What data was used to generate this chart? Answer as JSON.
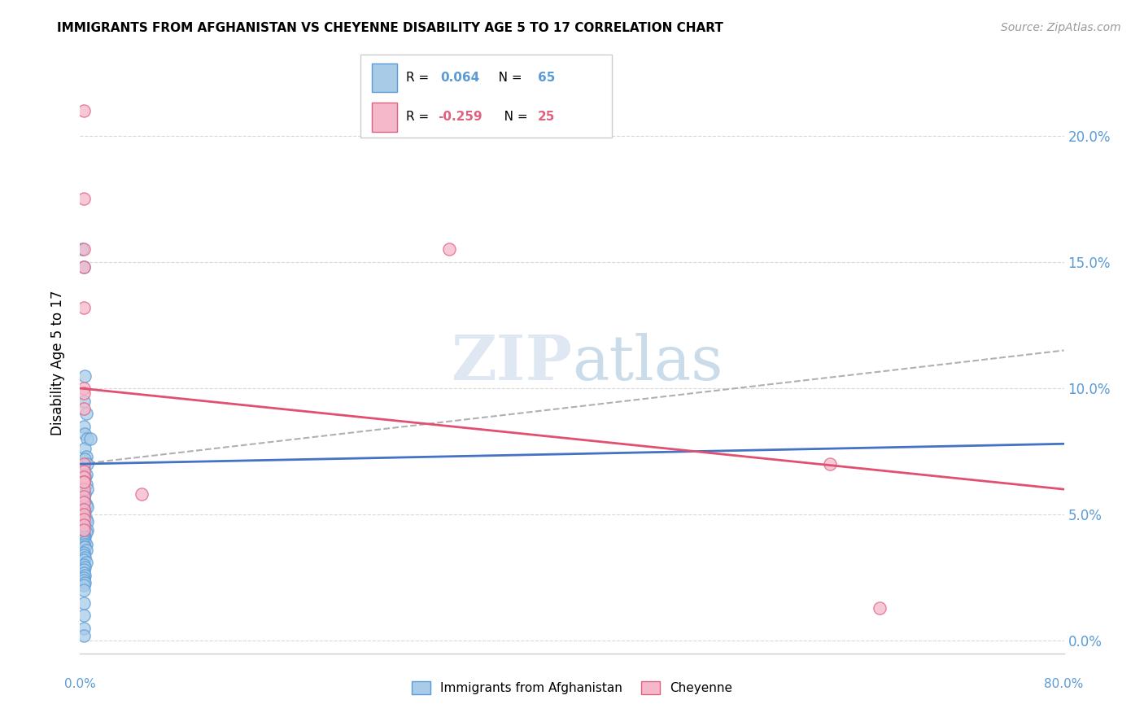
{
  "title": "IMMIGRANTS FROM AFGHANISTAN VS CHEYENNE DISABILITY AGE 5 TO 17 CORRELATION CHART",
  "source": "Source: ZipAtlas.com",
  "ylabel": "Disability Age 5 to 17",
  "legend_label1": "Immigrants from Afghanistan",
  "legend_label2": "Cheyenne",
  "r1": "0.064",
  "n1": "65",
  "r2": "-0.259",
  "n2": "25",
  "watermark_zip": "ZIP",
  "watermark_atlas": "atlas",
  "blue_color": "#a8cce8",
  "pink_color": "#f5b8cb",
  "blue_edge_color": "#5b9bd5",
  "pink_edge_color": "#e06080",
  "blue_line_color": "#4472c4",
  "pink_line_color": "#e05070",
  "dash_line_color": "#b0b0b0",
  "right_axis_color": "#5b9bd5",
  "xlim": [
    0.0,
    0.8
  ],
  "ylim": [
    -0.005,
    0.225
  ],
  "xticks": [
    0.0,
    0.1,
    0.2,
    0.3,
    0.4,
    0.5,
    0.6,
    0.7,
    0.8
  ],
  "yticks": [
    0.0,
    0.05,
    0.1,
    0.15,
    0.2
  ],
  "blue_trend_start": 0.07,
  "blue_trend_end": 0.078,
  "pink_trend_start": 0.1,
  "pink_trend_end": 0.06,
  "dash_trend_start": 0.07,
  "dash_trend_end": 0.115,
  "blue_x": [
    0.002,
    0.003,
    0.004,
    0.003,
    0.005,
    0.003,
    0.004,
    0.006,
    0.004,
    0.005,
    0.004,
    0.006,
    0.003,
    0.005,
    0.004,
    0.003,
    0.005,
    0.006,
    0.004,
    0.003,
    0.003,
    0.004,
    0.005,
    0.006,
    0.003,
    0.004,
    0.003,
    0.003,
    0.005,
    0.006,
    0.003,
    0.004,
    0.003,
    0.006,
    0.005,
    0.003,
    0.004,
    0.003,
    0.003,
    0.004,
    0.005,
    0.003,
    0.003,
    0.004,
    0.005,
    0.003,
    0.003,
    0.004,
    0.003,
    0.005,
    0.003,
    0.004,
    0.008,
    0.003,
    0.003,
    0.004,
    0.003,
    0.003,
    0.004,
    0.003,
    0.003,
    0.003,
    0.003,
    0.003,
    0.003
  ],
  "blue_y": [
    0.155,
    0.148,
    0.105,
    0.095,
    0.09,
    0.085,
    0.082,
    0.08,
    0.076,
    0.073,
    0.072,
    0.07,
    0.068,
    0.066,
    0.065,
    0.063,
    0.062,
    0.06,
    0.058,
    0.057,
    0.056,
    0.055,
    0.054,
    0.053,
    0.052,
    0.051,
    0.05,
    0.049,
    0.048,
    0.047,
    0.046,
    0.045,
    0.044,
    0.044,
    0.043,
    0.042,
    0.041,
    0.041,
    0.04,
    0.039,
    0.038,
    0.038,
    0.037,
    0.037,
    0.036,
    0.035,
    0.034,
    0.033,
    0.032,
    0.031,
    0.03,
    0.029,
    0.08,
    0.028,
    0.027,
    0.026,
    0.025,
    0.024,
    0.023,
    0.022,
    0.02,
    0.015,
    0.01,
    0.005,
    0.002
  ],
  "pink_x": [
    0.003,
    0.003,
    0.003,
    0.003,
    0.003,
    0.003,
    0.003,
    0.003,
    0.003,
    0.003,
    0.003,
    0.003,
    0.003,
    0.003,
    0.003,
    0.003,
    0.003,
    0.003,
    0.003,
    0.003,
    0.003,
    0.05,
    0.3,
    0.61,
    0.65
  ],
  "pink_y": [
    0.21,
    0.175,
    0.155,
    0.148,
    0.132,
    0.1,
    0.098,
    0.092,
    0.07,
    0.067,
    0.065,
    0.063,
    0.06,
    0.057,
    0.055,
    0.052,
    0.05,
    0.048,
    0.046,
    0.044,
    0.063,
    0.058,
    0.155,
    0.07,
    0.013
  ]
}
